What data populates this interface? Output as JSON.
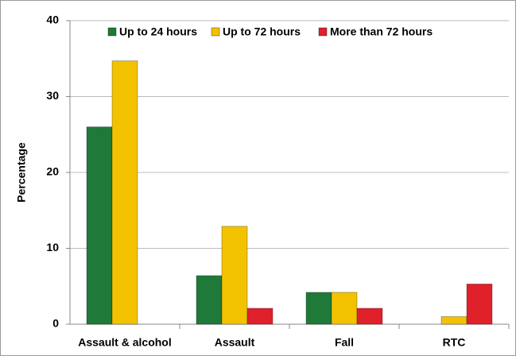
{
  "chart_data": {
    "type": "bar",
    "y_label": "Percentage",
    "categories": [
      "Assault & alcohol",
      "Assault",
      "Fall",
      "RTC"
    ],
    "series": [
      {
        "name": "Up to 24 hours",
        "color": "#1f7a3a",
        "values": [
          26,
          6.4,
          4.2,
          0
        ]
      },
      {
        "name": "Up to 72 hours",
        "color": "#f2c200",
        "values": [
          34.7,
          12.9,
          4.2,
          1.0
        ]
      },
      {
        "name": "More than 72 hours",
        "color": "#e0212b",
        "values": [
          0,
          2.1,
          2.1,
          5.3
        ]
      }
    ],
    "ylim": [
      0,
      40
    ],
    "yticks": [
      0,
      10,
      20,
      30,
      40
    ],
    "grid": true,
    "legend": "top"
  }
}
